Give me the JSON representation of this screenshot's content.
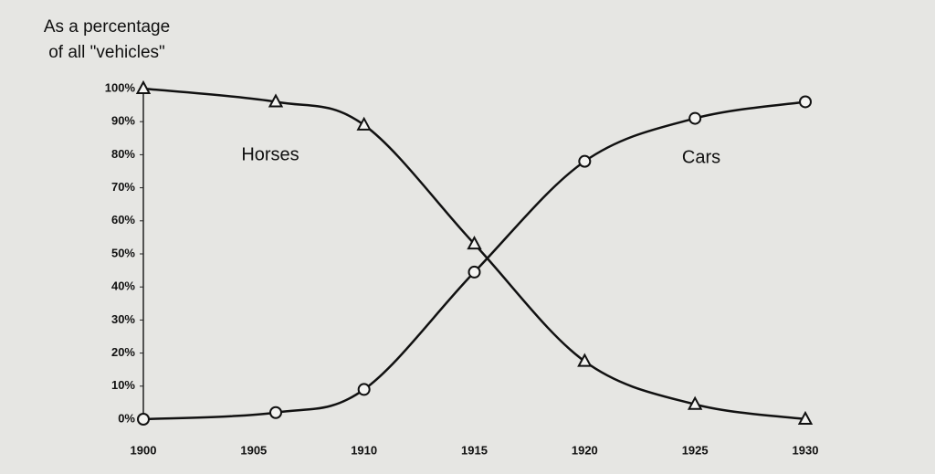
{
  "chart_data": {
    "type": "line",
    "y_label": [
      "As a percentage",
      "of all \"vehicles\""
    ],
    "x": [
      1900,
      1906,
      1910,
      1915,
      1920,
      1925,
      1930
    ],
    "series": [
      {
        "name": "Horses",
        "color": "#111111",
        "marker": "triangle",
        "values": [
          100,
          96,
          89,
          53,
          17.5,
          4.5,
          0
        ]
      },
      {
        "name": "Cars",
        "color": "#111111",
        "marker": "circle",
        "values": [
          0,
          2,
          9,
          44.5,
          78,
          91,
          96
        ]
      }
    ],
    "xlim": [
      1900,
      1930
    ],
    "xticks": [
      1900,
      1905,
      1910,
      1915,
      1920,
      1925,
      1930
    ],
    "ylim": [
      0,
      100
    ],
    "yticks": [
      {
        "value": 0,
        "label": "0%"
      },
      {
        "value": 10,
        "label": "10%"
      },
      {
        "value": 20,
        "label": "20%"
      },
      {
        "value": 30,
        "label": "30%"
      },
      {
        "value": 40,
        "label": "40%"
      },
      {
        "value": 50,
        "label": "50%"
      },
      {
        "value": 60,
        "label": "60%"
      },
      {
        "value": 70,
        "label": "70%"
      },
      {
        "value": 80,
        "label": "80%"
      },
      {
        "value": 90,
        "label": "90%"
      },
      {
        "value": 100,
        "label": "100%"
      }
    ],
    "grid": false
  }
}
